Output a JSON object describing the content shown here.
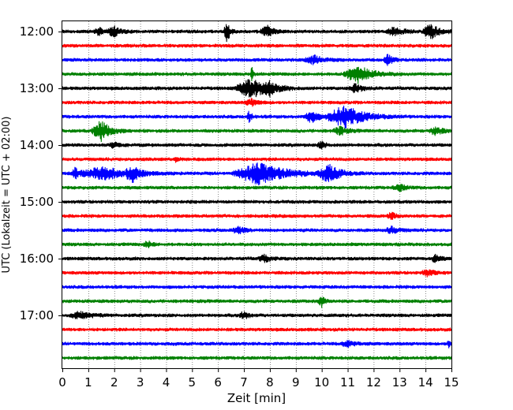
{
  "chart_data": {
    "type": "line",
    "title": "",
    "xlabel": "Zeit  [min]",
    "ylabel": "UTC (Lokalzeit = UTC + 02:00)",
    "xlim": [
      0,
      15
    ],
    "x_ticks": [
      "0",
      "1",
      "2",
      "3",
      "4",
      "5",
      "6",
      "7",
      "8",
      "9",
      "10",
      "11",
      "12",
      "13",
      "14",
      "15"
    ],
    "y_ticks": [
      "12:00",
      "13:00",
      "14:00",
      "15:00",
      "16:00",
      "17:00"
    ],
    "grid": "vertical dotted at each minute",
    "trace_interval_min": 15,
    "start_time": "12:00",
    "colors": [
      "#000000",
      "#ff0000",
      "#0000ff",
      "#008000"
    ],
    "traces": [
      {
        "time": "12:00",
        "color": "#000000",
        "events": [
          {
            "t": 1.4,
            "amp": 5,
            "dur": 0.2
          },
          {
            "t": 2.0,
            "amp": 6,
            "dur": 0.3
          },
          {
            "t": 6.35,
            "amp": 14,
            "dur": 0.15
          },
          {
            "t": 7.9,
            "amp": 7,
            "dur": 0.3
          },
          {
            "t": 12.8,
            "amp": 5,
            "dur": 0.4
          },
          {
            "t": 14.2,
            "amp": 10,
            "dur": 0.35
          }
        ]
      },
      {
        "time": "12:15",
        "color": "#ff0000",
        "events": []
      },
      {
        "time": "12:30",
        "color": "#0000ff",
        "events": [
          {
            "t": 9.7,
            "amp": 5,
            "dur": 0.4
          },
          {
            "t": 12.55,
            "amp": 7,
            "dur": 0.2
          }
        ]
      },
      {
        "time": "12:45",
        "color": "#008000",
        "events": [
          {
            "t": 7.3,
            "amp": 22,
            "dur": 0.05
          },
          {
            "t": 11.4,
            "amp": 11,
            "dur": 0.6
          }
        ]
      },
      {
        "time": "13:00",
        "color": "#000000",
        "events": [
          {
            "t": 7.3,
            "amp": 12,
            "dur": 0.7
          },
          {
            "t": 8.0,
            "amp": 6,
            "dur": 0.3
          },
          {
            "t": 11.3,
            "amp": 5,
            "dur": 0.3
          }
        ]
      },
      {
        "time": "13:15",
        "color": "#ff0000",
        "events": [
          {
            "t": 7.3,
            "amp": 4,
            "dur": 0.3
          }
        ]
      },
      {
        "time": "13:30",
        "color": "#0000ff",
        "events": [
          {
            "t": 7.2,
            "amp": 8,
            "dur": 0.1
          },
          {
            "t": 9.6,
            "amp": 8,
            "dur": 0.3
          },
          {
            "t": 10.9,
            "amp": 14,
            "dur": 0.8
          }
        ]
      },
      {
        "time": "13:45",
        "color": "#008000",
        "events": [
          {
            "t": 1.5,
            "amp": 13,
            "dur": 0.4
          },
          {
            "t": 10.7,
            "amp": 5,
            "dur": 0.3
          },
          {
            "t": 14.4,
            "amp": 5,
            "dur": 0.3
          }
        ]
      },
      {
        "time": "14:00",
        "color": "#000000",
        "events": [
          {
            "t": 2.0,
            "amp": 5,
            "dur": 0.2
          },
          {
            "t": 10.0,
            "amp": 4,
            "dur": 0.2
          }
        ]
      },
      {
        "time": "14:15",
        "color": "#ff0000",
        "events": [
          {
            "t": 4.4,
            "amp": 5,
            "dur": 0.1
          }
        ]
      },
      {
        "time": "14:30",
        "color": "#0000ff",
        "events": [
          {
            "t": 0.5,
            "amp": 8,
            "dur": 0.15
          },
          {
            "t": 1.6,
            "amp": 8,
            "dur": 1.0
          },
          {
            "t": 2.7,
            "amp": 9,
            "dur": 0.3
          },
          {
            "t": 7.6,
            "amp": 14,
            "dur": 1.1
          },
          {
            "t": 10.3,
            "amp": 10,
            "dur": 0.5
          }
        ]
      },
      {
        "time": "14:45",
        "color": "#008000",
        "events": [
          {
            "t": 13.0,
            "amp": 4,
            "dur": 0.3
          }
        ]
      },
      {
        "time": "15:00",
        "color": "#000000",
        "events": []
      },
      {
        "time": "15:15",
        "color": "#ff0000",
        "events": [
          {
            "t": 12.7,
            "amp": 4,
            "dur": 0.2
          }
        ]
      },
      {
        "time": "15:30",
        "color": "#0000ff",
        "events": [
          {
            "t": 6.8,
            "amp": 4,
            "dur": 0.3
          },
          {
            "t": 12.7,
            "amp": 4,
            "dur": 0.3
          }
        ]
      },
      {
        "time": "15:45",
        "color": "#008000",
        "events": [
          {
            "t": 3.3,
            "amp": 4,
            "dur": 0.2
          }
        ]
      },
      {
        "time": "16:00",
        "color": "#000000",
        "events": [
          {
            "t": 7.8,
            "amp": 4,
            "dur": 0.3
          },
          {
            "t": 14.4,
            "amp": 5,
            "dur": 0.2
          }
        ]
      },
      {
        "time": "16:15",
        "color": "#ff0000",
        "events": [
          {
            "t": 14.1,
            "amp": 4,
            "dur": 0.3
          }
        ]
      },
      {
        "time": "16:30",
        "color": "#0000ff",
        "events": []
      },
      {
        "time": "16:45",
        "color": "#008000",
        "events": [
          {
            "t": 10.0,
            "amp": 7,
            "dur": 0.15
          }
        ]
      },
      {
        "time": "17:00",
        "color": "#000000",
        "events": [
          {
            "t": 0.7,
            "amp": 4,
            "dur": 0.5
          },
          {
            "t": 7.0,
            "amp": 5,
            "dur": 0.2
          }
        ]
      },
      {
        "time": "17:15",
        "color": "#ff0000",
        "events": []
      },
      {
        "time": "17:30",
        "color": "#0000ff",
        "events": [
          {
            "t": 11.0,
            "amp": 4,
            "dur": 0.3
          },
          {
            "t": 14.9,
            "amp": 4,
            "dur": 0.1
          }
        ]
      },
      {
        "time": "17:45",
        "color": "#008000",
        "events": []
      }
    ]
  }
}
